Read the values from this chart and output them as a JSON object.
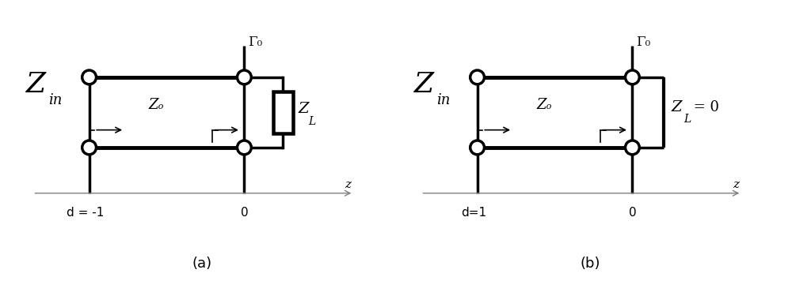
{
  "fig_bg": "#ffffff",
  "line_color": "#000000",
  "lw": 2.5,
  "lw_thick": 3.5,
  "lw_thin": 1.0,
  "diagram_a": {
    "Zin_label": "Z",
    "Zin_sub": "in",
    "Gamma_label": "Γ₀",
    "Z0_label": "Zₒ",
    "ZL_label": "Z",
    "ZL_sub": "L",
    "z_label": "z",
    "d_label": "d = -1",
    "zero_label": "0",
    "caption": "(a)"
  },
  "diagram_b": {
    "Zin_label": "Z",
    "Zin_sub": "in",
    "Gamma_label": "Γ₀",
    "Z0_label": "Zₒ",
    "ZL_label": "Z",
    "ZL_sub": "L",
    "ZL_eq": " = 0",
    "z_label": "z",
    "d_label": "d=1",
    "zero_label": "0",
    "caption": "(b)"
  }
}
